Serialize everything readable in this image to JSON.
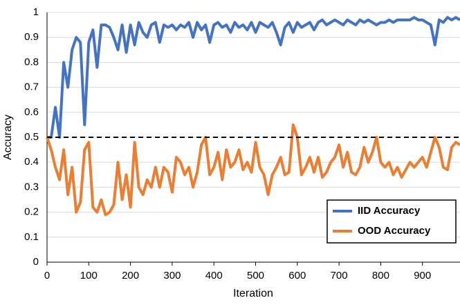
{
  "chart_data": {
    "type": "line",
    "xlabel": "Iteration",
    "ylabel": "Accuracy",
    "x": [
      0,
      10,
      20,
      30,
      40,
      50,
      60,
      70,
      80,
      90,
      100,
      110,
      120,
      130,
      140,
      150,
      160,
      170,
      180,
      190,
      200,
      210,
      220,
      230,
      240,
      250,
      260,
      270,
      280,
      290,
      300,
      310,
      320,
      330,
      340,
      350,
      360,
      370,
      380,
      390,
      400,
      410,
      420,
      430,
      440,
      450,
      460,
      470,
      480,
      490,
      500,
      510,
      520,
      530,
      540,
      550,
      560,
      570,
      580,
      590,
      600,
      610,
      620,
      630,
      640,
      650,
      660,
      670,
      680,
      690,
      700,
      710,
      720,
      730,
      740,
      750,
      760,
      770,
      780,
      790,
      800,
      810,
      820,
      830,
      840,
      850,
      860,
      870,
      880,
      890,
      900,
      910,
      920,
      930,
      940,
      950,
      960,
      970,
      980,
      990
    ],
    "series": [
      {
        "name": "IID Accuracy",
        "color": "#4472c4",
        "values": [
          0.5,
          0.5,
          0.62,
          0.5,
          0.8,
          0.7,
          0.85,
          0.9,
          0.88,
          0.55,
          0.88,
          0.93,
          0.78,
          0.95,
          0.95,
          0.94,
          0.9,
          0.85,
          0.95,
          0.84,
          0.95,
          0.87,
          0.96,
          0.92,
          0.9,
          0.95,
          0.96,
          0.88,
          0.95,
          0.94,
          0.95,
          0.93,
          0.95,
          0.94,
          0.96,
          0.9,
          0.96,
          0.93,
          0.95,
          0.88,
          0.95,
          0.96,
          0.94,
          0.95,
          0.92,
          0.96,
          0.94,
          0.95,
          0.93,
          0.96,
          0.92,
          0.96,
          0.95,
          0.94,
          0.96,
          0.92,
          0.87,
          0.94,
          0.96,
          0.92,
          0.96,
          0.94,
          0.95,
          0.96,
          0.93,
          0.96,
          0.97,
          0.95,
          0.96,
          0.97,
          0.96,
          0.95,
          0.97,
          0.96,
          0.95,
          0.97,
          0.96,
          0.97,
          0.96,
          0.95,
          0.96,
          0.96,
          0.97,
          0.96,
          0.97,
          0.97,
          0.97,
          0.97,
          0.98,
          0.97,
          0.97,
          0.96,
          0.95,
          0.87,
          0.97,
          0.96,
          0.98,
          0.97,
          0.98,
          0.97
        ]
      },
      {
        "name": "OOD Accuracy",
        "color": "#ed7d31",
        "values": [
          0.5,
          0.45,
          0.38,
          0.33,
          0.45,
          0.27,
          0.38,
          0.2,
          0.24,
          0.45,
          0.48,
          0.22,
          0.2,
          0.25,
          0.19,
          0.2,
          0.23,
          0.4,
          0.25,
          0.35,
          0.22,
          0.48,
          0.3,
          0.27,
          0.33,
          0.3,
          0.38,
          0.3,
          0.38,
          0.36,
          0.28,
          0.42,
          0.4,
          0.35,
          0.38,
          0.3,
          0.36,
          0.47,
          0.5,
          0.35,
          0.38,
          0.44,
          0.33,
          0.45,
          0.38,
          0.4,
          0.45,
          0.37,
          0.4,
          0.36,
          0.48,
          0.38,
          0.35,
          0.27,
          0.35,
          0.38,
          0.42,
          0.35,
          0.36,
          0.55,
          0.5,
          0.35,
          0.38,
          0.42,
          0.36,
          0.42,
          0.34,
          0.36,
          0.4,
          0.42,
          0.47,
          0.38,
          0.44,
          0.36,
          0.35,
          0.38,
          0.46,
          0.4,
          0.44,
          0.5,
          0.4,
          0.38,
          0.4,
          0.35,
          0.38,
          0.34,
          0.37,
          0.4,
          0.38,
          0.4,
          0.42,
          0.38,
          0.44,
          0.5,
          0.46,
          0.38,
          0.37,
          0.46,
          0.48,
          0.47
        ]
      }
    ],
    "reference_line": 0.5,
    "xlim": [
      0,
      990
    ],
    "xticks": [
      0,
      100,
      200,
      300,
      400,
      500,
      600,
      700,
      800,
      900
    ],
    "ylim": [
      0,
      1
    ],
    "yticks": [
      0,
      0.1,
      0.2,
      0.3,
      0.4,
      0.5,
      0.6,
      0.7,
      0.8,
      0.9,
      1
    ],
    "grid": true,
    "legend": "lower right"
  }
}
